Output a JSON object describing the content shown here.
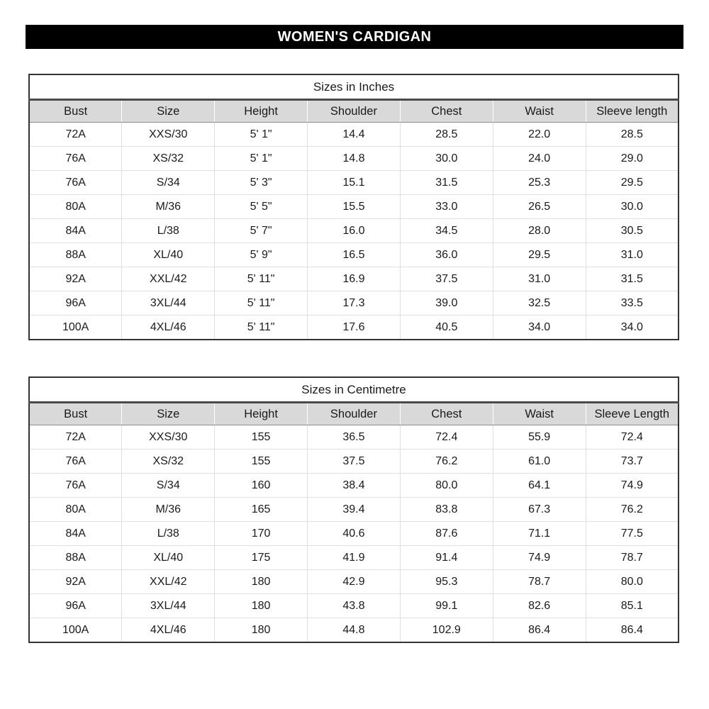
{
  "banner": {
    "title": "WOMEN'S CARDIGAN"
  },
  "tables": [
    {
      "title": "Sizes in Inches",
      "columns": [
        "Bust",
        "Size",
        "Height",
        "Shoulder",
        "Chest",
        "Waist",
        "Sleeve length"
      ],
      "rows": [
        [
          "72A",
          "XXS/30",
          "5' 1\"",
          "14.4",
          "28.5",
          "22.0",
          "28.5"
        ],
        [
          "76A",
          "XS/32",
          "5' 1\"",
          "14.8",
          "30.0",
          "24.0",
          "29.0"
        ],
        [
          "76A",
          "S/34",
          "5' 3\"",
          "15.1",
          "31.5",
          "25.3",
          "29.5"
        ],
        [
          "80A",
          "M/36",
          "5' 5\"",
          "15.5",
          "33.0",
          "26.5",
          "30.0"
        ],
        [
          "84A",
          "L/38",
          "5' 7\"",
          "16.0",
          "34.5",
          "28.0",
          "30.5"
        ],
        [
          "88A",
          "XL/40",
          "5' 9\"",
          "16.5",
          "36.0",
          "29.5",
          "31.0"
        ],
        [
          "92A",
          "XXL/42",
          "5' 11\"",
          "16.9",
          "37.5",
          "31.0",
          "31.5"
        ],
        [
          "96A",
          "3XL/44",
          "5' 11\"",
          "17.3",
          "39.0",
          "32.5",
          "33.5"
        ],
        [
          "100A",
          "4XL/46",
          "5' 11\"",
          "17.6",
          "40.5",
          "34.0",
          "34.0"
        ]
      ]
    },
    {
      "title": "Sizes in Centimetre",
      "columns": [
        "Bust",
        "Size",
        "Height",
        "Shoulder",
        "Chest",
        "Waist",
        "Sleeve Length"
      ],
      "rows": [
        [
          "72A",
          "XXS/30",
          "155",
          "36.5",
          "72.4",
          "55.9",
          "72.4"
        ],
        [
          "76A",
          "XS/32",
          "155",
          "37.5",
          "76.2",
          "61.0",
          "73.7"
        ],
        [
          "76A",
          "S/34",
          "160",
          "38.4",
          "80.0",
          "64.1",
          "74.9"
        ],
        [
          "80A",
          "M/36",
          "165",
          "39.4",
          "83.8",
          "67.3",
          "76.2"
        ],
        [
          "84A",
          "L/38",
          "170",
          "40.6",
          "87.6",
          "71.1",
          "77.5"
        ],
        [
          "88A",
          "XL/40",
          "175",
          "41.9",
          "91.4",
          "74.9",
          "78.7"
        ],
        [
          "92A",
          "XXL/42",
          "180",
          "42.9",
          "95.3",
          "78.7",
          "80.0"
        ],
        [
          "96A",
          "3XL/44",
          "180",
          "43.8",
          "99.1",
          "82.6",
          "85.1"
        ],
        [
          "100A",
          "4XL/46",
          "180",
          "44.8",
          "102.9",
          "86.4",
          "86.4"
        ]
      ]
    }
  ],
  "colors": {
    "banner_bg": "#000000",
    "banner_fg": "#ffffff",
    "header_bg": "#d9d9d9",
    "outer_border": "#333333",
    "title_separator": "#4a4a4a",
    "gridline": "#e0e0e0",
    "text": "#1a1a1a"
  }
}
